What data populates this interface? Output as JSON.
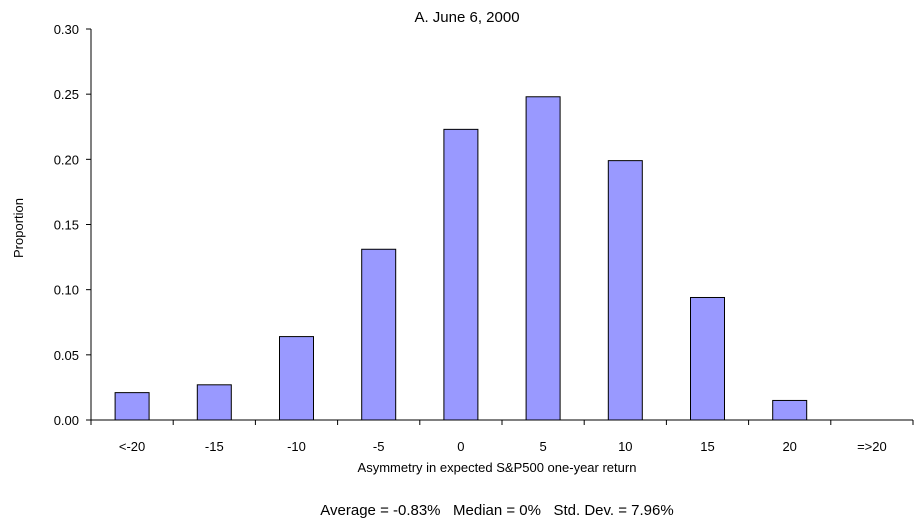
{
  "chart_data": {
    "type": "bar",
    "title": "A. June 6, 2000",
    "xlabel": "Asymmetry in expected S&P500 one-year return",
    "ylabel": "Proportion",
    "categories": [
      "<-20",
      "-15",
      "-10",
      "-5",
      "0",
      "5",
      "10",
      "15",
      "20",
      "=>20"
    ],
    "values": [
      0.021,
      0.027,
      0.064,
      0.131,
      0.223,
      0.248,
      0.199,
      0.094,
      0.015,
      0.0
    ],
    "ylim": [
      0,
      0.3
    ],
    "yticks": [
      "0.00",
      "0.05",
      "0.10",
      "0.15",
      "0.20",
      "0.25",
      "0.30"
    ],
    "grid": false,
    "bar_color": "#9999ff",
    "bar_stroke": "#000000",
    "stats_text": "Average = -0.83%   Median = 0%   Std. Dev. = 7.96%"
  }
}
